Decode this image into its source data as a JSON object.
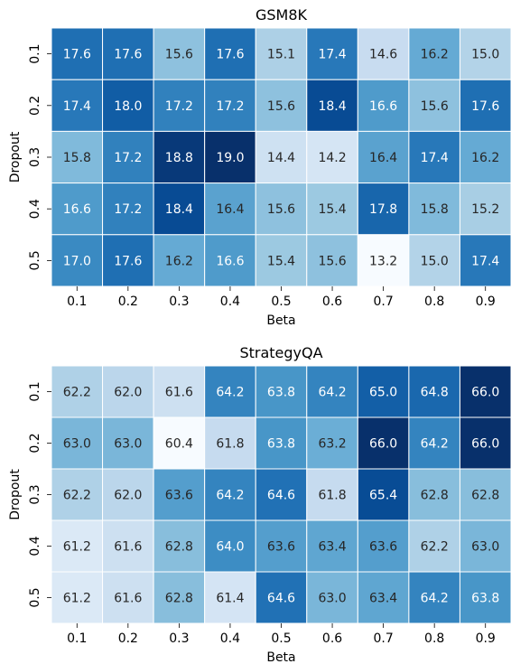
{
  "chart_data": [
    {
      "type": "heatmap",
      "title": "GSM8K",
      "xlabel": "Beta",
      "ylabel": "Dropout",
      "x_categories": [
        "0.1",
        "0.2",
        "0.3",
        "0.4",
        "0.5",
        "0.6",
        "0.7",
        "0.8",
        "0.9"
      ],
      "y_categories": [
        "0.1",
        "0.2",
        "0.3",
        "0.4",
        "0.5"
      ],
      "values": [
        [
          17.6,
          17.6,
          15.6,
          17.6,
          15.1,
          17.4,
          14.6,
          16.2,
          15.0
        ],
        [
          17.4,
          18.0,
          17.2,
          17.2,
          15.6,
          18.4,
          16.6,
          15.6,
          17.6
        ],
        [
          15.8,
          17.2,
          18.8,
          19.0,
          14.4,
          14.2,
          16.4,
          17.4,
          16.2
        ],
        [
          16.6,
          17.2,
          18.4,
          16.4,
          15.6,
          15.4,
          17.8,
          15.8,
          15.2
        ],
        [
          17.0,
          17.6,
          16.2,
          16.6,
          15.4,
          15.6,
          13.2,
          15.0,
          17.4
        ]
      ],
      "colormap": "Blues",
      "colorbar": false
    },
    {
      "type": "heatmap",
      "title": "StrategyQA",
      "xlabel": "Beta",
      "ylabel": "Dropout",
      "x_categories": [
        "0.1",
        "0.2",
        "0.3",
        "0.4",
        "0.5",
        "0.6",
        "0.7",
        "0.8",
        "0.9"
      ],
      "y_categories": [
        "0.1",
        "0.2",
        "0.3",
        "0.4",
        "0.5"
      ],
      "values": [
        [
          62.2,
          62.0,
          61.6,
          64.2,
          63.8,
          64.2,
          65.0,
          64.8,
          66.0
        ],
        [
          63.0,
          63.0,
          60.4,
          61.8,
          63.8,
          63.2,
          66.0,
          64.2,
          66.0
        ],
        [
          62.2,
          62.0,
          63.6,
          64.2,
          64.6,
          61.8,
          65.4,
          62.8,
          62.8
        ],
        [
          61.2,
          61.6,
          62.8,
          64.0,
          63.6,
          63.4,
          63.6,
          62.2,
          63.0
        ],
        [
          61.2,
          61.6,
          62.8,
          61.4,
          64.6,
          63.0,
          63.4,
          64.2,
          63.8
        ]
      ],
      "colormap": "Blues",
      "colorbar": false
    }
  ]
}
